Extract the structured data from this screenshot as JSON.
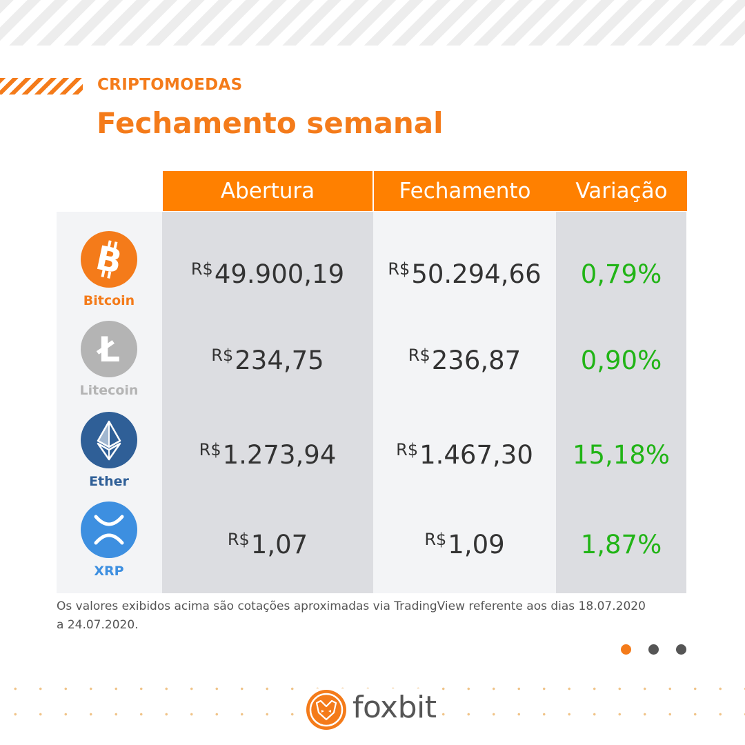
{
  "header": {
    "section": "CRIPTOMOEDAS",
    "title": "Fechamento semanal"
  },
  "table": {
    "columns": [
      "Abertura",
      "Fechamento",
      "Variação"
    ],
    "rows": [
      {
        "coin": "Bitcoin",
        "symbol": "B",
        "open_cur": "R$",
        "open": "49.900,19",
        "close_cur": "R$",
        "close": "50.294,66",
        "change": "0,79%"
      },
      {
        "coin": "Litecoin",
        "symbol": "Ł",
        "open_cur": "R$",
        "open": "234,75",
        "close_cur": "R$",
        "close": "236,87",
        "change": "0,90%"
      },
      {
        "coin": "Ether",
        "symbol": "ETH",
        "open_cur": "R$",
        "open": "1.273,94",
        "close_cur": "R$",
        "close": "1.467,30",
        "change": "15,18%"
      },
      {
        "coin": "XRP",
        "symbol": "X",
        "open_cur": "R$",
        "open": "1,07",
        "close_cur": "R$",
        "close": "1,09",
        "change": "1,87%"
      }
    ]
  },
  "footnote": "Os valores exibidos acima são cotações aproximadas via TradingView referente aos dias 18.07.2020 a 24.07.2020.",
  "brand": {
    "name": "foxbit"
  },
  "colors": {
    "accent": "#f47b1a",
    "header": "#ff8000",
    "positive": "#21b416",
    "bitcoin": "#f47b1a",
    "litecoin": "#b4b4b4",
    "ether": "#2f5f97",
    "xrp": "#3d8fe0"
  },
  "icons": [
    "bitcoin-icon",
    "litecoin-icon",
    "ether-icon",
    "xrp-icon",
    "fox-logo-icon"
  ]
}
